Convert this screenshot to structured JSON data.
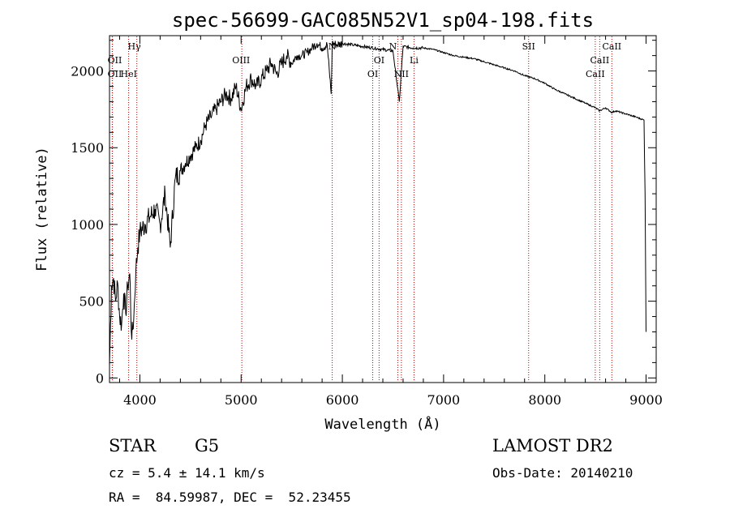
{
  "chart_data": {
    "type": "line",
    "title": "spec-56699-GAC085N52V1_sp04-198.fits",
    "xlabel": "Wavelength (Å)",
    "ylabel": "Flux (relative)",
    "xlim": [
      3700,
      9100
    ],
    "ylim": [
      -30,
      2230
    ],
    "xticks": [
      4000,
      5000,
      6000,
      7000,
      8000,
      9000
    ],
    "yticks": [
      0,
      500,
      1000,
      1500,
      2000
    ],
    "grid": false,
    "series": [
      {
        "x": [
          3700,
          3720,
          3740,
          3760,
          3780,
          3800,
          3820,
          3840,
          3860,
          3880,
          3900,
          3920,
          3940,
          3960,
          3980,
          4000,
          4050,
          4100,
          4150,
          4200,
          4250,
          4300,
          4350,
          4400,
          4450,
          4500,
          4550,
          4600,
          4650,
          4700,
          4750,
          4800,
          4850,
          4900,
          4950,
          5000,
          5050,
          5100,
          5150,
          5200,
          5250,
          5300,
          5350,
          5400,
          5450,
          5500,
          5550,
          5600,
          5650,
          5700,
          5750,
          5800,
          5850,
          5890,
          5900,
          5950,
          6000,
          6100,
          6200,
          6300,
          6400,
          6500,
          6563,
          6600,
          6700,
          6800,
          6900,
          7000,
          7100,
          7200,
          7300,
          7400,
          7500,
          7600,
          7700,
          7800,
          7900,
          8000,
          8100,
          8200,
          8300,
          8400,
          8500,
          8540,
          8600,
          8660,
          8700,
          8800,
          8900,
          8980,
          8990,
          9000
        ],
        "y": [
          80,
          600,
          650,
          500,
          620,
          400,
          350,
          550,
          420,
          600,
          680,
          250,
          400,
          700,
          850,
          950,
          1000,
          1050,
          1100,
          1000,
          1200,
          850,
          1300,
          1350,
          1400,
          1450,
          1500,
          1550,
          1650,
          1700,
          1750,
          1800,
          1850,
          1820,
          1900,
          1750,
          1900,
          1950,
          1900,
          1950,
          2000,
          2050,
          1980,
          2050,
          2100,
          2050,
          2100,
          2100,
          2120,
          2150,
          2180,
          2150,
          2170,
          1850,
          2180,
          2170,
          2180,
          2170,
          2160,
          2150,
          2140,
          2130,
          1800,
          2160,
          2150,
          2150,
          2140,
          2120,
          2100,
          2090,
          2080,
          2060,
          2040,
          2020,
          2000,
          1970,
          1950,
          1920,
          1880,
          1850,
          1820,
          1790,
          1760,
          1740,
          1760,
          1730,
          1740,
          1720,
          1700,
          1680,
          1200,
          300
        ]
      }
    ],
    "annotations": [
      {
        "label": "Hγ",
        "x": 3970,
        "row": 1,
        "lx": 3945
      },
      {
        "label": "OII",
        "x": 3727,
        "row": 2,
        "lx": 3752
      },
      {
        "label": "OII",
        "x": 3729,
        "row": 3,
        "lx": 3752
      },
      {
        "label": "HeI",
        "x": 3889,
        "row": 3,
        "lx": 3890
      },
      {
        "label": "OIII",
        "x": 5007,
        "row": 2,
        "lx": 5000
      },
      {
        "label": "N",
        "x": 5900,
        "row": 1,
        "lx": 5900
      },
      {
        "label": "OI",
        "x": 6300,
        "row": 3,
        "lx": 6300
      },
      {
        "label": "OI",
        "x": 6363,
        "row": 2,
        "lx": 6363
      },
      {
        "label": "N",
        "x": 6548,
        "row": 1,
        "lx": 6500
      },
      {
        "label": "NII",
        "x": 6583,
        "row": 3,
        "lx": 6583
      },
      {
        "label": "Li",
        "x": 6708,
        "row": 2,
        "lx": 6708
      },
      {
        "label": "SII",
        "x": 7840,
        "row": 1,
        "lx": 7840
      },
      {
        "label": "CaII",
        "x": 8498,
        "row": 3,
        "lx": 8498
      },
      {
        "label": "CaII",
        "x": 8542,
        "row": 2,
        "lx": 8542
      },
      {
        "label": "CaII",
        "x": 8662,
        "row": 1,
        "lx": 8662
      }
    ]
  },
  "info": {
    "class": "STAR",
    "subclass": "G5",
    "survey": "LAMOST DR2",
    "cz": "cz = 5.4 ± 14.1 km/s",
    "obs_date": "Obs-Date: 20140210",
    "radec": "RA =  84.59987, DEC =  52.23455"
  }
}
